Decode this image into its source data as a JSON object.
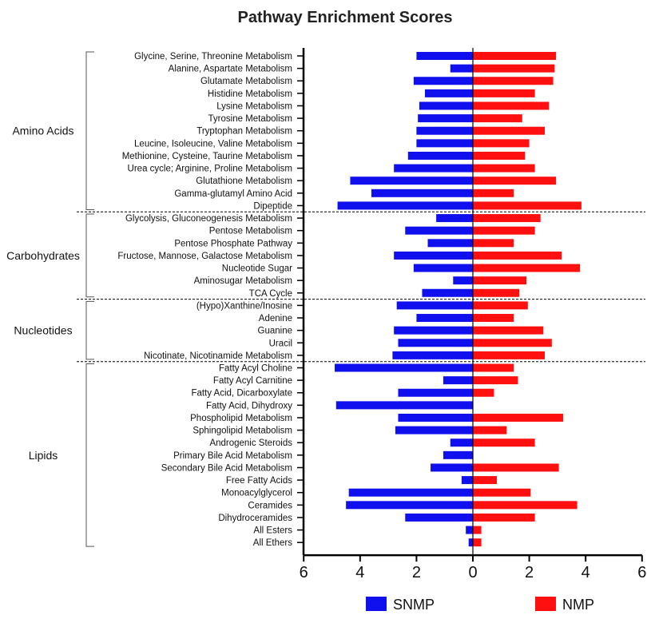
{
  "chart_data": {
    "type": "bar",
    "orientation": "horizontal-diverging",
    "title": "Pathway Enrichment Scores",
    "xlabel": "",
    "ylabel": "",
    "xlim": [
      -6,
      6
    ],
    "xticks": [
      -6,
      -4,
      -2,
      0,
      2,
      4,
      6
    ],
    "xtick_labels": [
      "6",
      "4",
      "2",
      "0",
      "2",
      "4",
      "6"
    ],
    "legend_position": "bottom",
    "series": [
      {
        "name": "SNMP",
        "color": "#1010ee",
        "direction": "left"
      },
      {
        "name": "NMP",
        "color": "#ff1010",
        "direction": "right"
      }
    ],
    "groups": [
      {
        "name": "Amino Acids",
        "items": [
          {
            "label": "Glycine, Serine, Threonine Metabolism",
            "SNMP": 2.0,
            "NMP": 2.95
          },
          {
            "label": "Alanine, Aspartate Metabolism",
            "SNMP": 0.8,
            "NMP": 2.9
          },
          {
            "label": "Glutamate Metabolism",
            "SNMP": 2.1,
            "NMP": 2.85
          },
          {
            "label": "Histidine Metabolism",
            "SNMP": 1.7,
            "NMP": 2.2
          },
          {
            "label": "Lysine Metabolism",
            "SNMP": 1.9,
            "NMP": 2.7
          },
          {
            "label": "Tyrosine Metabolism",
            "SNMP": 1.95,
            "NMP": 1.75
          },
          {
            "label": "Tryptophan Metabolism",
            "SNMP": 2.0,
            "NMP": 2.55
          },
          {
            "label": "Leucine, Isoleucine, Valine Metabolism",
            "SNMP": 2.0,
            "NMP": 2.0
          },
          {
            "label": "Methionine, Cysteine, Taurine Metabolism",
            "SNMP": 2.3,
            "NMP": 1.85
          },
          {
            "label": "Urea cycle; Arginine, Proline Metabolism",
            "SNMP": 2.8,
            "NMP": 2.2
          },
          {
            "label": "Glutathione Metabolism",
            "SNMP": 4.35,
            "NMP": 2.95
          },
          {
            "label": "Gamma-glutamyl Amino Acid",
            "SNMP": 3.6,
            "NMP": 1.45
          },
          {
            "label": "Dipeptide",
            "SNMP": 4.8,
            "NMP": 3.85
          }
        ]
      },
      {
        "name": "Carbohydrates",
        "items": [
          {
            "label": "Glycolysis, Gluconeogenesis Metabolism",
            "SNMP": 1.3,
            "NMP": 2.4
          },
          {
            "label": "Pentose Metabolism",
            "SNMP": 2.4,
            "NMP": 2.2
          },
          {
            "label": "Pentose Phosphate Pathway",
            "SNMP": 1.6,
            "NMP": 1.45
          },
          {
            "label": "Fructose, Mannose, Galactose Metabolism",
            "SNMP": 2.8,
            "NMP": 3.15
          },
          {
            "label": "Nucleotide Sugar",
            "SNMP": 2.1,
            "NMP": 3.8
          },
          {
            "label": "Aminosugar Metabolism",
            "SNMP": 0.7,
            "NMP": 1.9
          },
          {
            "label": "TCA Cycle",
            "SNMP": 1.8,
            "NMP": 1.65
          }
        ]
      },
      {
        "name": "Nucleotides",
        "items": [
          {
            "label": "(Hypo)Xanthine/Inosine",
            "SNMP": 2.7,
            "NMP": 1.95
          },
          {
            "label": "Adenine",
            "SNMP": 2.0,
            "NMP": 1.45
          },
          {
            "label": "Guanine",
            "SNMP": 2.8,
            "NMP": 2.5
          },
          {
            "label": "Uracil",
            "SNMP": 2.65,
            "NMP": 2.8
          },
          {
            "label": "Nicotinate, Nicotinamide Metabolism",
            "SNMP": 2.85,
            "NMP": 2.55
          }
        ]
      },
      {
        "name": "Lipids",
        "items": [
          {
            "label": "Fatty Acyl Choline",
            "SNMP": 4.9,
            "NMP": 1.45
          },
          {
            "label": "Fatty Acyl Carnitine",
            "SNMP": 1.05,
            "NMP": 1.6
          },
          {
            "label": "Fatty Acid, Dicarboxylate",
            "SNMP": 2.65,
            "NMP": 0.75
          },
          {
            "label": "Fatty Acid, Dihydroxy",
            "SNMP": 4.85,
            "NMP": 0.0
          },
          {
            "label": "Phospholipid Metabolism",
            "SNMP": 2.65,
            "NMP": 3.2
          },
          {
            "label": "Sphingolipid Metabolism",
            "SNMP": 2.75,
            "NMP": 1.2
          },
          {
            "label": "Androgenic Steroids",
            "SNMP": 0.8,
            "NMP": 2.2
          },
          {
            "label": "Primary Bile Acid Metabolism",
            "SNMP": 1.05,
            "NMP": 0.0
          },
          {
            "label": "Secondary Bile Acid Metabolism",
            "SNMP": 1.5,
            "NMP": 3.05
          },
          {
            "label": "Free Fatty Acids",
            "SNMP": 0.4,
            "NMP": 0.85
          },
          {
            "label": "Monoacylglycerol",
            "SNMP": 4.4,
            "NMP": 2.05
          },
          {
            "label": "Ceramides",
            "SNMP": 4.5,
            "NMP": 3.7
          },
          {
            "label": "Dihydroceramides",
            "SNMP": 2.4,
            "NMP": 2.2
          },
          {
            "label": "All Esters",
            "SNMP": 0.25,
            "NMP": 0.3
          },
          {
            "label": "All Ethers",
            "SNMP": 0.15,
            "NMP": 0.3
          }
        ]
      }
    ]
  }
}
